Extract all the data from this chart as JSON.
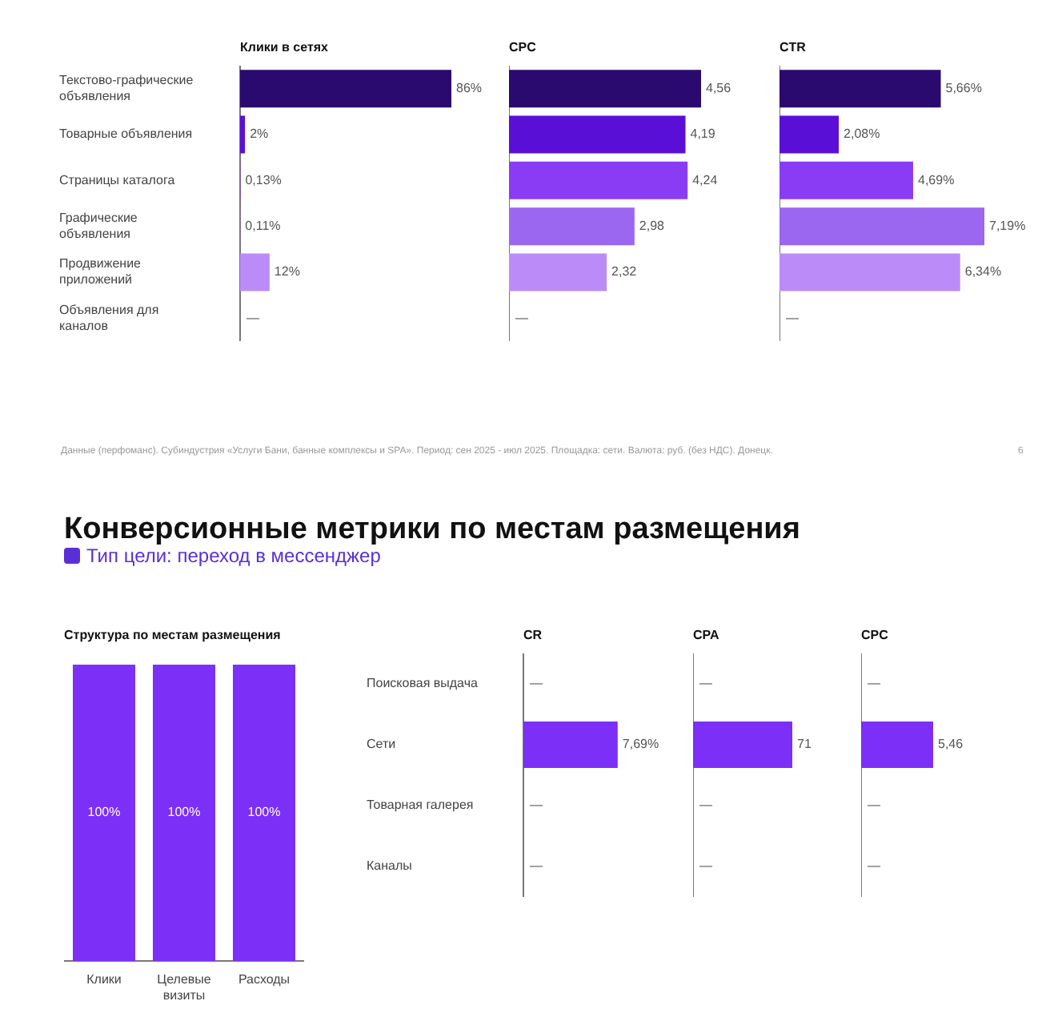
{
  "chart_data": [
    {
      "type": "bar",
      "orientation": "horizontal",
      "title": "Клики в сетях",
      "categories": [
        "Текстово-графические объявления",
        "Товарные объявления",
        "Страницы каталога",
        "Графические объявления",
        "Продвижение приложений",
        "Объявления для каналов"
      ],
      "values": [
        86,
        2,
        0.13,
        0.11,
        12,
        null
      ],
      "colors": [
        "#2a0a6e",
        "#5a0fd6",
        "#8a3cf5",
        "#9b66f0",
        "#bb8cf8",
        "#bb8cf8"
      ],
      "value_labels": [
        "86%",
        "2%",
        "0,13%",
        "0,11%",
        "12%",
        "—"
      ],
      "tick_labels": "y",
      "annotations": [
        "Данные (перфоманс). Субиндустрия «Услуги Бани, банные комплексы и SPA». Период: сен 2025 - июл 2025. Площадка: сети. Валюта: руб. (без НДС). Донецк.",
        "6"
      ]
    },
    {
      "type": "bar",
      "orientation": "horizontal",
      "title": "CPC",
      "categories": [
        null,
        null,
        null,
        null,
        null,
        null
      ],
      "values": [
        4.56,
        4.19,
        4.24,
        2.98,
        2.32,
        null
      ],
      "colors": [
        "#2a0a6e",
        "#5a0fd6",
        "#8a3cf5",
        "#9b66f0",
        "#bb8cf8",
        "#bb8cf8"
      ],
      "value_labels": [
        "4,56",
        "4,19",
        "4,24",
        "2,98",
        "2,32",
        "—"
      ],
      "tick_labels": false
    },
    {
      "type": "bar",
      "orientation": "horizontal",
      "title": "CTR",
      "categories": [
        null,
        null,
        null,
        null,
        null,
        null
      ],
      "values": [
        5.66,
        2.08,
        4.69,
        7.19,
        6.34,
        null
      ],
      "colors": [
        "#2a0a6e",
        "#5a0fd6",
        "#8a3cf5",
        "#9b66f0",
        "#bb8cf8",
        "#bb8cf8"
      ],
      "value_labels": [
        "5,66%",
        "2,08%",
        "4,69%",
        "7,19%",
        "6,34%",
        "—"
      ],
      "tick_labels": false
    },
    {
      "type": "bar",
      "title": "Структура по местам размещения",
      "categories": [
        "Клики",
        "Целевые визиты",
        "Расходы"
      ],
      "values": [
        100,
        100,
        100
      ],
      "colors": [
        "#7b2ff7",
        "#7b2ff7",
        "#7b2ff7"
      ],
      "value_labels": [
        "100%",
        "100%",
        "100%"
      ],
      "tick_labels": "x",
      "annotations": [
        "Конверсионные метрики по местам размещения",
        "Тип цели: переход в мессенджер"
      ]
    },
    {
      "type": "bar",
      "orientation": "horizontal",
      "title": "CR",
      "categories": [
        "Поисковая выдача",
        "Сети",
        "Товарная галерея",
        "Каналы"
      ],
      "values": [
        null,
        7.69,
        null,
        null
      ],
      "colors": [
        "#7b2ff7",
        "#7b2ff7",
        "#7b2ff7",
        "#7b2ff7"
      ],
      "value_labels": [
        "—",
        "7,69%",
        "—",
        "—"
      ],
      "tick_labels": "y"
    },
    {
      "type": "bar",
      "orientation": "horizontal",
      "title": "CPA",
      "categories": [
        null,
        null,
        null,
        null
      ],
      "values": [
        null,
        71,
        null,
        null
      ],
      "colors": [
        "#7b2ff7",
        "#7b2ff7",
        "#7b2ff7",
        "#7b2ff7"
      ],
      "value_labels": [
        "—",
        "71",
        "—",
        "—"
      ],
      "tick_labels": false
    },
    {
      "type": "bar",
      "orientation": "horizontal",
      "title": "CPC",
      "categories": [
        null,
        null,
        null,
        null
      ],
      "values": [
        null,
        5.46,
        null,
        null
      ],
      "colors": [
        "#7b2ff7",
        "#7b2ff7",
        "#7b2ff7",
        "#7b2ff7"
      ],
      "value_labels": [
        "—",
        "5,46",
        "—",
        "—"
      ],
      "tick_labels": false
    }
  ]
}
